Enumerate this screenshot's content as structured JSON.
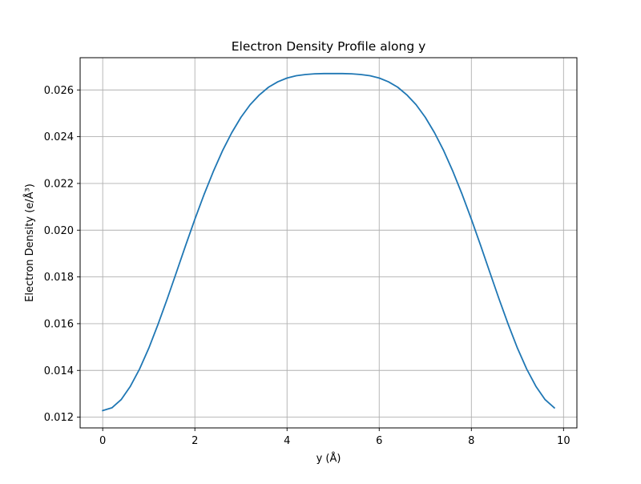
{
  "chart_data": {
    "type": "line",
    "title": "Electron Density Profile along y",
    "xlabel": "y (Å)",
    "ylabel": "Electron Density (e/Å³)",
    "xlim": [
      -0.49,
      10.29
    ],
    "ylim": [
      0.01154,
      0.02738
    ],
    "grid": true,
    "xticks": [
      0,
      2,
      4,
      6,
      8,
      10
    ],
    "xtick_labels": [
      "0",
      "2",
      "4",
      "6",
      "8",
      "10"
    ],
    "yticks": [
      0.012,
      0.014,
      0.016,
      0.018,
      0.02,
      0.022,
      0.024,
      0.026
    ],
    "ytick_labels": [
      "0.012",
      "0.014",
      "0.016",
      "0.018",
      "0.020",
      "0.022",
      "0.024",
      "0.026"
    ],
    "series": [
      {
        "color": "#1f77b4",
        "x": [
          0.0,
          0.2,
          0.4,
          0.6,
          0.8,
          1.0,
          1.2,
          1.4,
          1.6,
          1.8,
          2.0,
          2.2,
          2.4,
          2.6,
          2.8,
          3.0,
          3.2,
          3.4,
          3.6,
          3.8,
          4.0,
          4.2,
          4.4,
          4.6,
          4.8,
          5.0,
          5.2,
          5.4,
          5.6,
          5.8,
          6.0,
          6.2,
          6.4,
          6.6,
          6.8,
          7.0,
          7.2,
          7.4,
          7.6,
          7.8,
          8.0,
          8.2,
          8.4,
          8.6,
          8.8,
          9.0,
          9.2,
          9.4,
          9.6,
          9.8
        ],
        "y": [
          0.01228,
          0.0124,
          0.01275,
          0.01332,
          0.01406,
          0.01495,
          0.01597,
          0.01706,
          0.0182,
          0.01935,
          0.02047,
          0.02153,
          0.02251,
          0.0234,
          0.02417,
          0.02483,
          0.02537,
          0.02579,
          0.02612,
          0.02635,
          0.02651,
          0.02661,
          0.02666,
          0.02669,
          0.0267,
          0.0267,
          0.0267,
          0.02669,
          0.02666,
          0.02661,
          0.02651,
          0.02635,
          0.02612,
          0.02579,
          0.02537,
          0.02483,
          0.02417,
          0.0234,
          0.02251,
          0.02153,
          0.02047,
          0.01935,
          0.0182,
          0.01706,
          0.01597,
          0.01495,
          0.01406,
          0.01332,
          0.01275,
          0.0124
        ]
      }
    ]
  }
}
